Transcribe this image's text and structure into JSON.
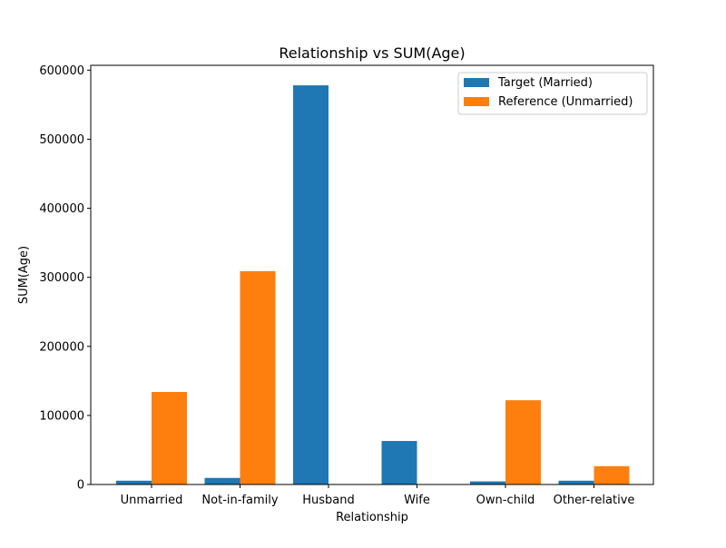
{
  "chart_data": {
    "type": "bar",
    "title": "Relationship vs SUM(Age)",
    "xlabel": "Relationship",
    "ylabel": "SUM(Age)",
    "categories": [
      "Unmarried",
      "Not-in-family",
      "Husband",
      "Wife",
      "Own-child",
      "Other-relative"
    ],
    "series": [
      {
        "name": "Target (Married)",
        "color": "#1f77b4",
        "values": [
          5500,
          9500,
          578000,
          63000,
          4500,
          5500
        ]
      },
      {
        "name": "Reference (Unmarried)",
        "color": "#ff7f0e",
        "values": [
          134000,
          309000,
          0,
          0,
          122000,
          26500
        ]
      }
    ],
    "ylim": [
      0,
      607000
    ],
    "yticks": [
      0,
      100000,
      200000,
      300000,
      400000,
      500000,
      600000
    ],
    "ytick_labels": [
      "0",
      "100000",
      "200000",
      "300000",
      "400000",
      "500000",
      "600000"
    ],
    "grid": false,
    "legend_position": "top-right"
  }
}
